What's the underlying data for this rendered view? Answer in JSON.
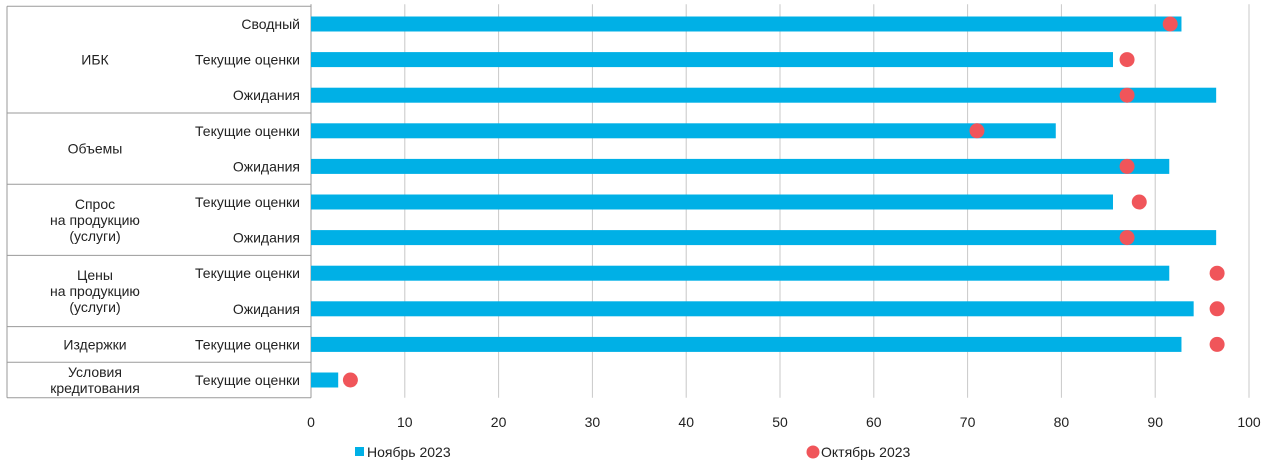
{
  "chart_data": {
    "type": "bar",
    "orientation": "horizontal",
    "groups": [
      {
        "label_lines": [
          "ИБК"
        ],
        "rows": [
          0,
          1,
          2
        ]
      },
      {
        "label_lines": [
          "Объемы"
        ],
        "rows": [
          3,
          4
        ]
      },
      {
        "label_lines": [
          "Спрос",
          "на продукцию",
          "(услуги)"
        ],
        "rows": [
          5,
          6
        ]
      },
      {
        "label_lines": [
          "Цены",
          "на продукцию",
          "(услуги)"
        ],
        "rows": [
          7,
          8
        ]
      },
      {
        "label_lines": [
          "Издержки"
        ],
        "rows": [
          9
        ]
      },
      {
        "label_lines": [
          "Условия",
          "кредитования"
        ],
        "rows": [
          10
        ]
      }
    ],
    "categories": [
      "Сводный",
      "Текущие оценки",
      "Ожидания",
      "Текущие оценки",
      "Ожидания",
      "Текущие оценки",
      "Ожидания",
      "Текущие оценки",
      "Ожидания",
      "Текущие оценки",
      "Текущие оценки"
    ],
    "series": [
      {
        "name": "Ноябрь 2023",
        "kind": "bar",
        "color": "#00b0e6",
        "values": [
          92.8,
          85.5,
          96.5,
          79.4,
          91.5,
          85.5,
          96.5,
          91.5,
          94.1,
          92.8,
          2.9
        ]
      },
      {
        "name": "Октябрь 2023",
        "kind": "dot",
        "color": "#f0555a",
        "values": [
          91.6,
          87.0,
          87.0,
          71.0,
          87.0,
          88.3,
          87.0,
          96.6,
          96.6,
          96.6,
          4.2
        ]
      }
    ],
    "xlim": [
      0,
      100
    ],
    "xticks": [
      0,
      10,
      20,
      30,
      40,
      50,
      60,
      70,
      80,
      90,
      100
    ],
    "xlabel": "",
    "ylabel": "",
    "grid": "vertical",
    "legend_position": "bottom"
  }
}
